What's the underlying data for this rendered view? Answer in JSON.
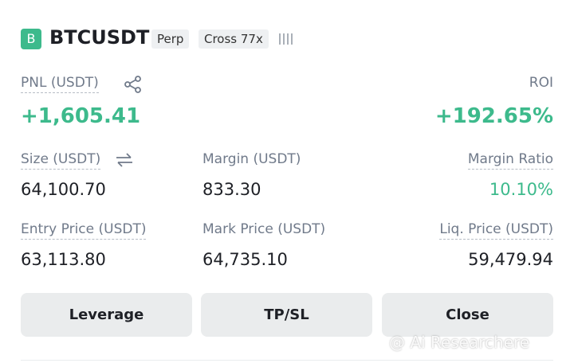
{
  "header": {
    "badge": "B",
    "symbol": "BTCUSDT",
    "tags": [
      "Perp",
      "Cross 77x"
    ]
  },
  "pnl": {
    "label": "PNL (USDT)",
    "value": "+1,605.41"
  },
  "roi": {
    "label": "ROI",
    "value": "+192.65%"
  },
  "fields": [
    {
      "label": "Size (USDT)",
      "value": "64,100.70"
    },
    {
      "label": "Margin (USDT)",
      "value": "833.30"
    },
    {
      "label": "Margin Ratio",
      "value": "10.10%"
    },
    {
      "label": "Entry Price (USDT)",
      "value": "63,113.80"
    },
    {
      "label": "Mark Price (USDT)",
      "value": "64,735.10"
    },
    {
      "label": "Liq. Price (USDT)",
      "value": "59,479.94"
    }
  ],
  "buttons": [
    "Leverage",
    "TP/SL",
    "Close"
  ],
  "watermark": "@ Ai Researchere"
}
